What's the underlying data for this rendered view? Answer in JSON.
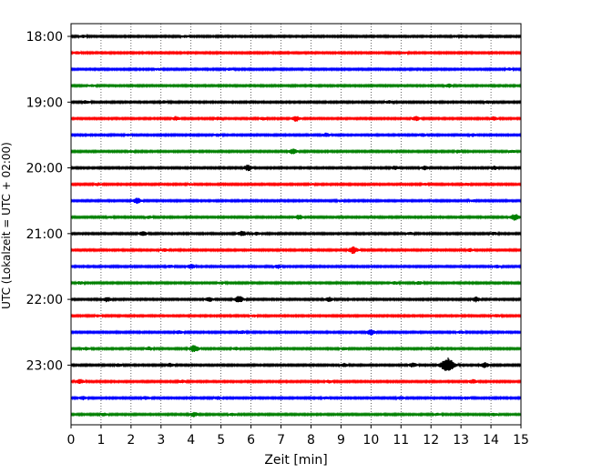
{
  "chart_data": {
    "type": "line",
    "title": "",
    "xlabel": "Zeit  [min]",
    "ylabel": "UTC (Lokalzeit = UTC + 02:00)",
    "xlim": [
      0,
      15
    ],
    "x_ticks": [
      0,
      1,
      2,
      3,
      4,
      5,
      6,
      7,
      8,
      9,
      10,
      11,
      12,
      13,
      14,
      15
    ],
    "x_tick_labels": [
      "0",
      "1",
      "2",
      "3",
      "4",
      "5",
      "6",
      "7",
      "8",
      "9",
      "10",
      "11",
      "12",
      "13",
      "14",
      "15"
    ],
    "y_ticks": [
      {
        "label": "18:00",
        "trace": 0
      },
      {
        "label": "19:00",
        "trace": 4
      },
      {
        "label": "20:00",
        "trace": 8
      },
      {
        "label": "21:00",
        "trace": 12
      },
      {
        "label": "22:00",
        "trace": 16
      },
      {
        "label": "23:00",
        "trace": 20
      }
    ],
    "trace_interval_min": 15,
    "trace_colors": [
      "#000000",
      "#ff0000",
      "#0000ff",
      "#008000"
    ],
    "traces": [
      {
        "start": "18:00",
        "color": "#000000",
        "events": [
          [
            0.4,
            0.25
          ],
          [
            3.8,
            0.2
          ],
          [
            12.8,
            0.2
          ]
        ]
      },
      {
        "start": "18:15",
        "color": "#ff0000",
        "events": [
          [
            0.2,
            0.25
          ],
          [
            11.1,
            0.2
          ]
        ]
      },
      {
        "start": "18:30",
        "color": "#0000ff",
        "events": [
          [
            2.9,
            0.2
          ],
          [
            5.3,
            0.25
          ],
          [
            14.6,
            0.25
          ]
        ]
      },
      {
        "start": "18:45",
        "color": "#008000",
        "events": [
          [
            0.7,
            0.2
          ],
          [
            12.6,
            0.4
          ]
        ]
      },
      {
        "start": "19:00",
        "color": "#000000",
        "events": [
          [
            0.5,
            0.3
          ],
          [
            3.1,
            0.25
          ],
          [
            10.6,
            0.3
          ],
          [
            13.9,
            0.25
          ]
        ]
      },
      {
        "start": "19:15",
        "color": "#ff0000",
        "events": [
          [
            3.5,
            0.45
          ],
          [
            4.9,
            0.3
          ],
          [
            6.4,
            0.3
          ],
          [
            7.5,
            0.6
          ],
          [
            11.5,
            0.5
          ],
          [
            14.1,
            0.4
          ]
        ]
      },
      {
        "start": "19:30",
        "color": "#0000ff",
        "events": [
          [
            1.9,
            0.2
          ],
          [
            4.9,
            0.3
          ],
          [
            8.5,
            0.45
          ],
          [
            11.7,
            0.35
          ],
          [
            13.4,
            0.3
          ]
        ]
      },
      {
        "start": "19:45",
        "color": "#008000",
        "events": [
          [
            2.0,
            0.2
          ],
          [
            7.4,
            0.6
          ],
          [
            12.9,
            0.3
          ],
          [
            14.7,
            0.25
          ]
        ]
      },
      {
        "start": "20:00",
        "color": "#000000",
        "events": [
          [
            5.9,
            0.7
          ],
          [
            10.8,
            0.4
          ],
          [
            11.8,
            0.45
          ],
          [
            14.1,
            0.4
          ]
        ]
      },
      {
        "start": "20:15",
        "color": "#ff0000",
        "events": [
          [
            0.9,
            0.3
          ],
          [
            4.0,
            0.2
          ],
          [
            8.0,
            0.2
          ],
          [
            11.8,
            0.2
          ],
          [
            13.2,
            0.25
          ]
        ]
      },
      {
        "start": "20:30",
        "color": "#0000ff",
        "events": [
          [
            2.2,
            0.65
          ],
          [
            9.0,
            0.2
          ],
          [
            13.4,
            0.2
          ]
        ]
      },
      {
        "start": "20:45",
        "color": "#008000",
        "events": [
          [
            1.3,
            0.2
          ],
          [
            2.6,
            0.3
          ],
          [
            7.6,
            0.5
          ],
          [
            14.8,
            0.75
          ]
        ]
      },
      {
        "start": "21:00",
        "color": "#000000",
        "events": [
          [
            2.4,
            0.5
          ],
          [
            5.7,
            0.55
          ],
          [
            6.2,
            0.3
          ],
          [
            11.3,
            0.25
          ],
          [
            14.1,
            0.3
          ]
        ]
      },
      {
        "start": "21:15",
        "color": "#ff0000",
        "events": [
          [
            3.1,
            0.3
          ],
          [
            9.4,
            0.8
          ],
          [
            13.3,
            0.35
          ]
        ]
      },
      {
        "start": "21:30",
        "color": "#0000ff",
        "events": [
          [
            3.3,
            0.3
          ],
          [
            4.0,
            0.55
          ],
          [
            6.9,
            0.45
          ],
          [
            14.2,
            0.3
          ]
        ]
      },
      {
        "start": "21:45",
        "color": "#008000",
        "events": [
          [
            0.3,
            0.3
          ],
          [
            5.0,
            0.25
          ],
          [
            10.8,
            0.3
          ],
          [
            11.6,
            0.3
          ]
        ]
      },
      {
        "start": "22:00",
        "color": "#000000",
        "events": [
          [
            1.2,
            0.55
          ],
          [
            4.6,
            0.5
          ],
          [
            5.6,
            0.8
          ],
          [
            8.6,
            0.5
          ],
          [
            13.5,
            0.55
          ]
        ]
      },
      {
        "start": "22:15",
        "color": "#ff0000",
        "events": [
          [
            0.9,
            0.2
          ],
          [
            6.1,
            0.25
          ],
          [
            14.2,
            0.3
          ]
        ]
      },
      {
        "start": "22:30",
        "color": "#0000ff",
        "events": [
          [
            3.6,
            0.35
          ],
          [
            5.7,
            0.3
          ],
          [
            10.0,
            0.6
          ],
          [
            13.0,
            0.3
          ]
        ]
      },
      {
        "start": "22:45",
        "color": "#008000",
        "events": [
          [
            0.5,
            0.3
          ],
          [
            2.6,
            0.4
          ],
          [
            4.1,
            0.8
          ],
          [
            5.5,
            0.3
          ],
          [
            9.1,
            0.3
          ],
          [
            12.2,
            0.3
          ]
        ]
      },
      {
        "start": "23:00",
        "color": "#000000",
        "events": [
          [
            1.6,
            0.35
          ],
          [
            3.3,
            0.4
          ],
          [
            9.1,
            0.4
          ],
          [
            11.4,
            0.5
          ],
          [
            12.55,
            1.8
          ],
          [
            13.8,
            0.6
          ]
        ]
      },
      {
        "start": "23:15",
        "color": "#ff0000",
        "events": [
          [
            0.3,
            0.5
          ],
          [
            3.7,
            0.3
          ],
          [
            8.6,
            0.3
          ],
          [
            13.4,
            0.5
          ]
        ]
      },
      {
        "start": "23:30",
        "color": "#0000ff",
        "events": [
          [
            0.4,
            0.4
          ],
          [
            2.5,
            0.4
          ],
          [
            4.9,
            0.35
          ],
          [
            8.5,
            0.25
          ],
          [
            11.0,
            0.35
          ],
          [
            13.2,
            0.3
          ]
        ]
      },
      {
        "start": "23:45",
        "color": "#008000",
        "events": [
          [
            1.1,
            0.3
          ],
          [
            4.1,
            0.5
          ],
          [
            5.4,
            0.3
          ],
          [
            12.2,
            0.25
          ],
          [
            14.1,
            0.3
          ]
        ]
      }
    ],
    "grid": "vertical-dotted",
    "legend": "none"
  }
}
